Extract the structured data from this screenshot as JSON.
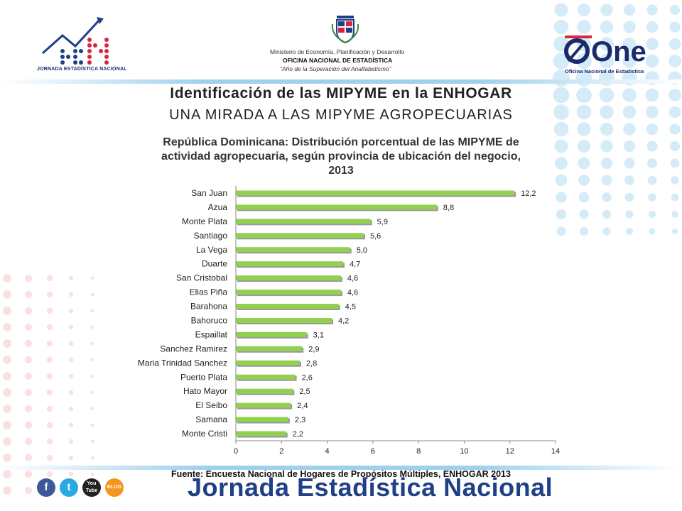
{
  "header": {
    "left_logo_text": "JORNADA ESTADÍSTICA NACIONAL",
    "ministry_line1": "Ministerio de Economía, Planificación y Desarrollo",
    "ministry_line2": "OFICINA NACIONAL DE ESTADÍSTICA",
    "ministry_line3": "“Año de la Superación del Analfabetismo”",
    "right_logo_text": "One",
    "right_logo_sub": "Oficina Nacional de Estadística"
  },
  "titles": {
    "main": "Identificación de las MIPYME en la ENHOGAR",
    "subtitle": "UNA MIRADA A LAS MIPYME AGROPECUARIAS"
  },
  "chart_data": {
    "type": "bar",
    "orientation": "horizontal",
    "title": "República Dominicana: Distribución porcentual de las MIPYME de actividad agropecuaria, según provincia de ubicación del negocio, 2013",
    "categories": [
      "San Juan",
      "Azua",
      "Monte Plata",
      "Santiago",
      "La Vega",
      "Duarte",
      "San Cristobal",
      "Elias Piña",
      "Barahona",
      "Bahoruco",
      "Espaillat",
      "Sanchez Ramirez",
      "Maria Trinidad Sanchez",
      "Puerto Plata",
      "Hato Mayor",
      "El Seibo",
      "Samana",
      "Monte Cristi"
    ],
    "values": [
      12.2,
      8.8,
      5.9,
      5.6,
      5.0,
      4.7,
      4.6,
      4.6,
      4.5,
      4.2,
      3.1,
      2.9,
      2.8,
      2.6,
      2.5,
      2.4,
      2.3,
      2.2
    ],
    "value_labels": [
      "12,2",
      "8,8",
      "5,9",
      "5,6",
      "5,0",
      "4,7",
      "4,6",
      "4,6",
      "4,5",
      "4,2",
      "3,1",
      "2,9",
      "2,8",
      "2,6",
      "2,5",
      "2,4",
      "2,3",
      "2,2"
    ],
    "xlim": [
      0,
      14
    ],
    "xticks": [
      0,
      2,
      4,
      6,
      8,
      10,
      12,
      14
    ],
    "bar_color": "#92d050",
    "grid": false,
    "legend": "none"
  },
  "footer": {
    "source": "Fuente: Encuesta Nacional de Hogares de Propósitos Múltiples, ENHOGAR 2013",
    "brand": "Jornada Estadística Nacional",
    "social": [
      {
        "icon": "facebook-icon",
        "glyph": "f",
        "color": "#3b5998"
      },
      {
        "icon": "twitter-icon",
        "glyph": "t",
        "color": "#29a9e1"
      },
      {
        "icon": "youtube-icon",
        "glyph": "You Tube",
        "color": "#222222"
      },
      {
        "icon": "blog-icon",
        "glyph": "BLOG",
        "color": "#f7941d"
      }
    ]
  },
  "colors": {
    "accent_blue": "#1f3f86",
    "dot_blue": "#d5ecf8",
    "dot_red": "#fbe0e0",
    "logo_red": "#d7263d"
  }
}
